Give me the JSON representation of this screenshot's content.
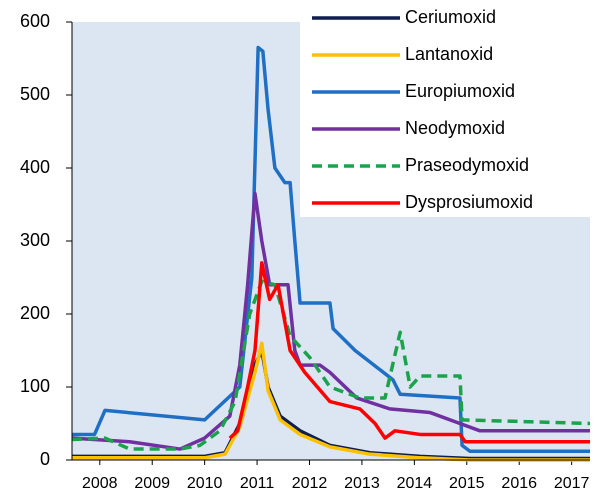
{
  "chart_data": {
    "type": "line",
    "xlim": [
      2007.47,
      2017.35
    ],
    "xticks": [
      2008,
      2009,
      2010,
      2011,
      2012,
      2013,
      2014,
      2015,
      2016,
      2017
    ],
    "ylim": [
      0,
      600
    ],
    "yticks": [
      0,
      100,
      200,
      300,
      400,
      500,
      600
    ],
    "legend": "upper right",
    "series": [
      {
        "name": "Ceriumoxid",
        "color": "#0d1f4f",
        "dash": false,
        "x": [
          2007.47,
          2010.0,
          2010.39,
          2010.67,
          2010.96,
          2011.09,
          2011.21,
          2011.44,
          2011.82,
          2012.39,
          2013.15,
          2014.11,
          2015.06,
          2017.35
        ],
        "values": [
          5,
          5,
          10,
          50,
          130,
          150,
          100,
          60,
          40,
          20,
          10,
          5,
          2,
          2
        ]
      },
      {
        "name": "Lantanoxid",
        "color": "#ffc000",
        "dash": false,
        "x": [
          2007.47,
          2010.0,
          2010.39,
          2010.67,
          2010.96,
          2011.09,
          2011.21,
          2011.44,
          2011.82,
          2012.39,
          2013.15,
          2014.11,
          2015.06,
          2017.35
        ],
        "values": [
          3,
          3,
          8,
          45,
          120,
          160,
          95,
          55,
          35,
          18,
          8,
          3,
          0,
          0
        ]
      },
      {
        "name": "Europiumoxid",
        "color": "#1f6fc5",
        "dash": false,
        "x": [
          2007.47,
          2007.9,
          2008.1,
          2010.0,
          2010.67,
          2010.9,
          2011.02,
          2011.11,
          2011.21,
          2011.34,
          2011.53,
          2011.63,
          2011.72,
          2011.82,
          2012.39,
          2012.45,
          2012.87,
          2013.59,
          2013.73,
          2014.87,
          2014.91,
          2015.06,
          2017.35
        ],
        "values": [
          35,
          35,
          68,
          55,
          100,
          250,
          565,
          560,
          480,
          400,
          380,
          380,
          300,
          215,
          215,
          180,
          150,
          110,
          90,
          85,
          20,
          12,
          12
        ]
      },
      {
        "name": "Neodymoxid",
        "color": "#7030a0",
        "dash": false,
        "x": [
          2007.47,
          2008.57,
          2009.53,
          2010.0,
          2010.48,
          2010.67,
          2010.82,
          2010.96,
          2011.09,
          2011.24,
          2011.59,
          2011.72,
          2011.82,
          2012.2,
          2012.39,
          2012.9,
          2013.53,
          2014.3,
          2014.87,
          2015.25,
          2017.35
        ],
        "values": [
          30,
          25,
          15,
          30,
          60,
          130,
          240,
          365,
          300,
          240,
          240,
          150,
          130,
          130,
          120,
          85,
          70,
          65,
          50,
          40,
          40
        ]
      },
      {
        "name": "Praseodymoxid",
        "color": "#1aa34a",
        "dash": true,
        "x": [
          2007.47,
          2008.1,
          2008.57,
          2009.53,
          2009.91,
          2010.29,
          2010.58,
          2010.86,
          2011.09,
          2011.34,
          2011.63,
          2012.01,
          2012.39,
          2012.96,
          2013.44,
          2013.73,
          2013.92,
          2014.11,
          2014.87,
          2014.91,
          2017.35
        ],
        "values": [
          28,
          30,
          15,
          15,
          20,
          40,
          80,
          200,
          245,
          240,
          170,
          140,
          100,
          85,
          85,
          175,
          100,
          115,
          115,
          55,
          50
        ]
      },
      {
        "name": "Dysprosiumoxid",
        "color": "#ff0000",
        "dash": false,
        "x": [
          2010.48,
          2010.63,
          2010.82,
          2010.96,
          2011.09,
          2011.24,
          2011.4,
          2011.63,
          2011.91,
          2012.39,
          2012.96,
          2013.25,
          2013.44,
          2013.63,
          2014.11,
          2014.87,
          2014.97,
          2017.35
        ],
        "values": [
          30,
          40,
          100,
          150,
          270,
          220,
          240,
          150,
          120,
          80,
          70,
          50,
          30,
          40,
          35,
          35,
          25,
          25
        ]
      }
    ]
  }
}
